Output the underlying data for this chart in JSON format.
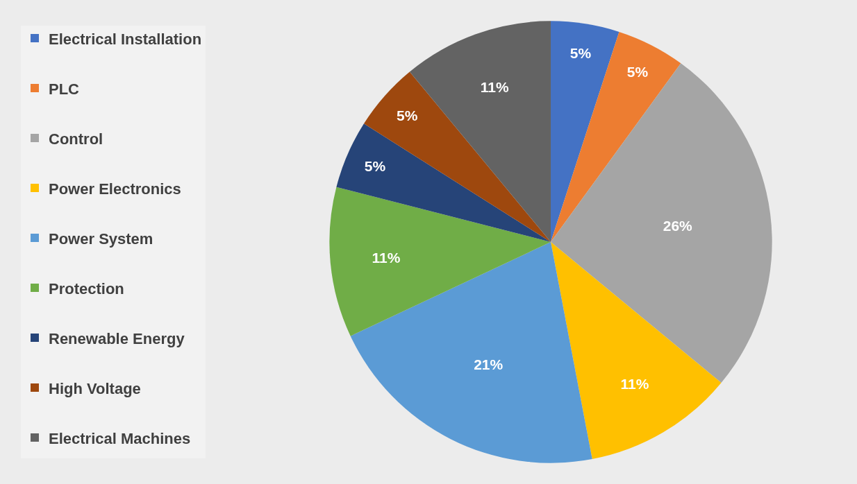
{
  "chart_data": {
    "type": "pie",
    "categories": [
      "Electrical Installation",
      "PLC",
      "Control",
      "Power Electronics",
      "Power System",
      "Protection",
      "Renewable Energy",
      "High Voltage",
      "Electrical Machines"
    ],
    "values": [
      5,
      5,
      26,
      11,
      21,
      11,
      5,
      5,
      11
    ],
    "value_labels": [
      "5%",
      "5%",
      "26%",
      "11%",
      "21%",
      "11%",
      "5%",
      "5%",
      "11%"
    ],
    "colors": [
      "#4472c4",
      "#ed7d31",
      "#a5a5a5",
      "#ffc000",
      "#5b9bd5",
      "#70ad47",
      "#264478",
      "#9e480e",
      "#636363"
    ],
    "legend": "left"
  }
}
